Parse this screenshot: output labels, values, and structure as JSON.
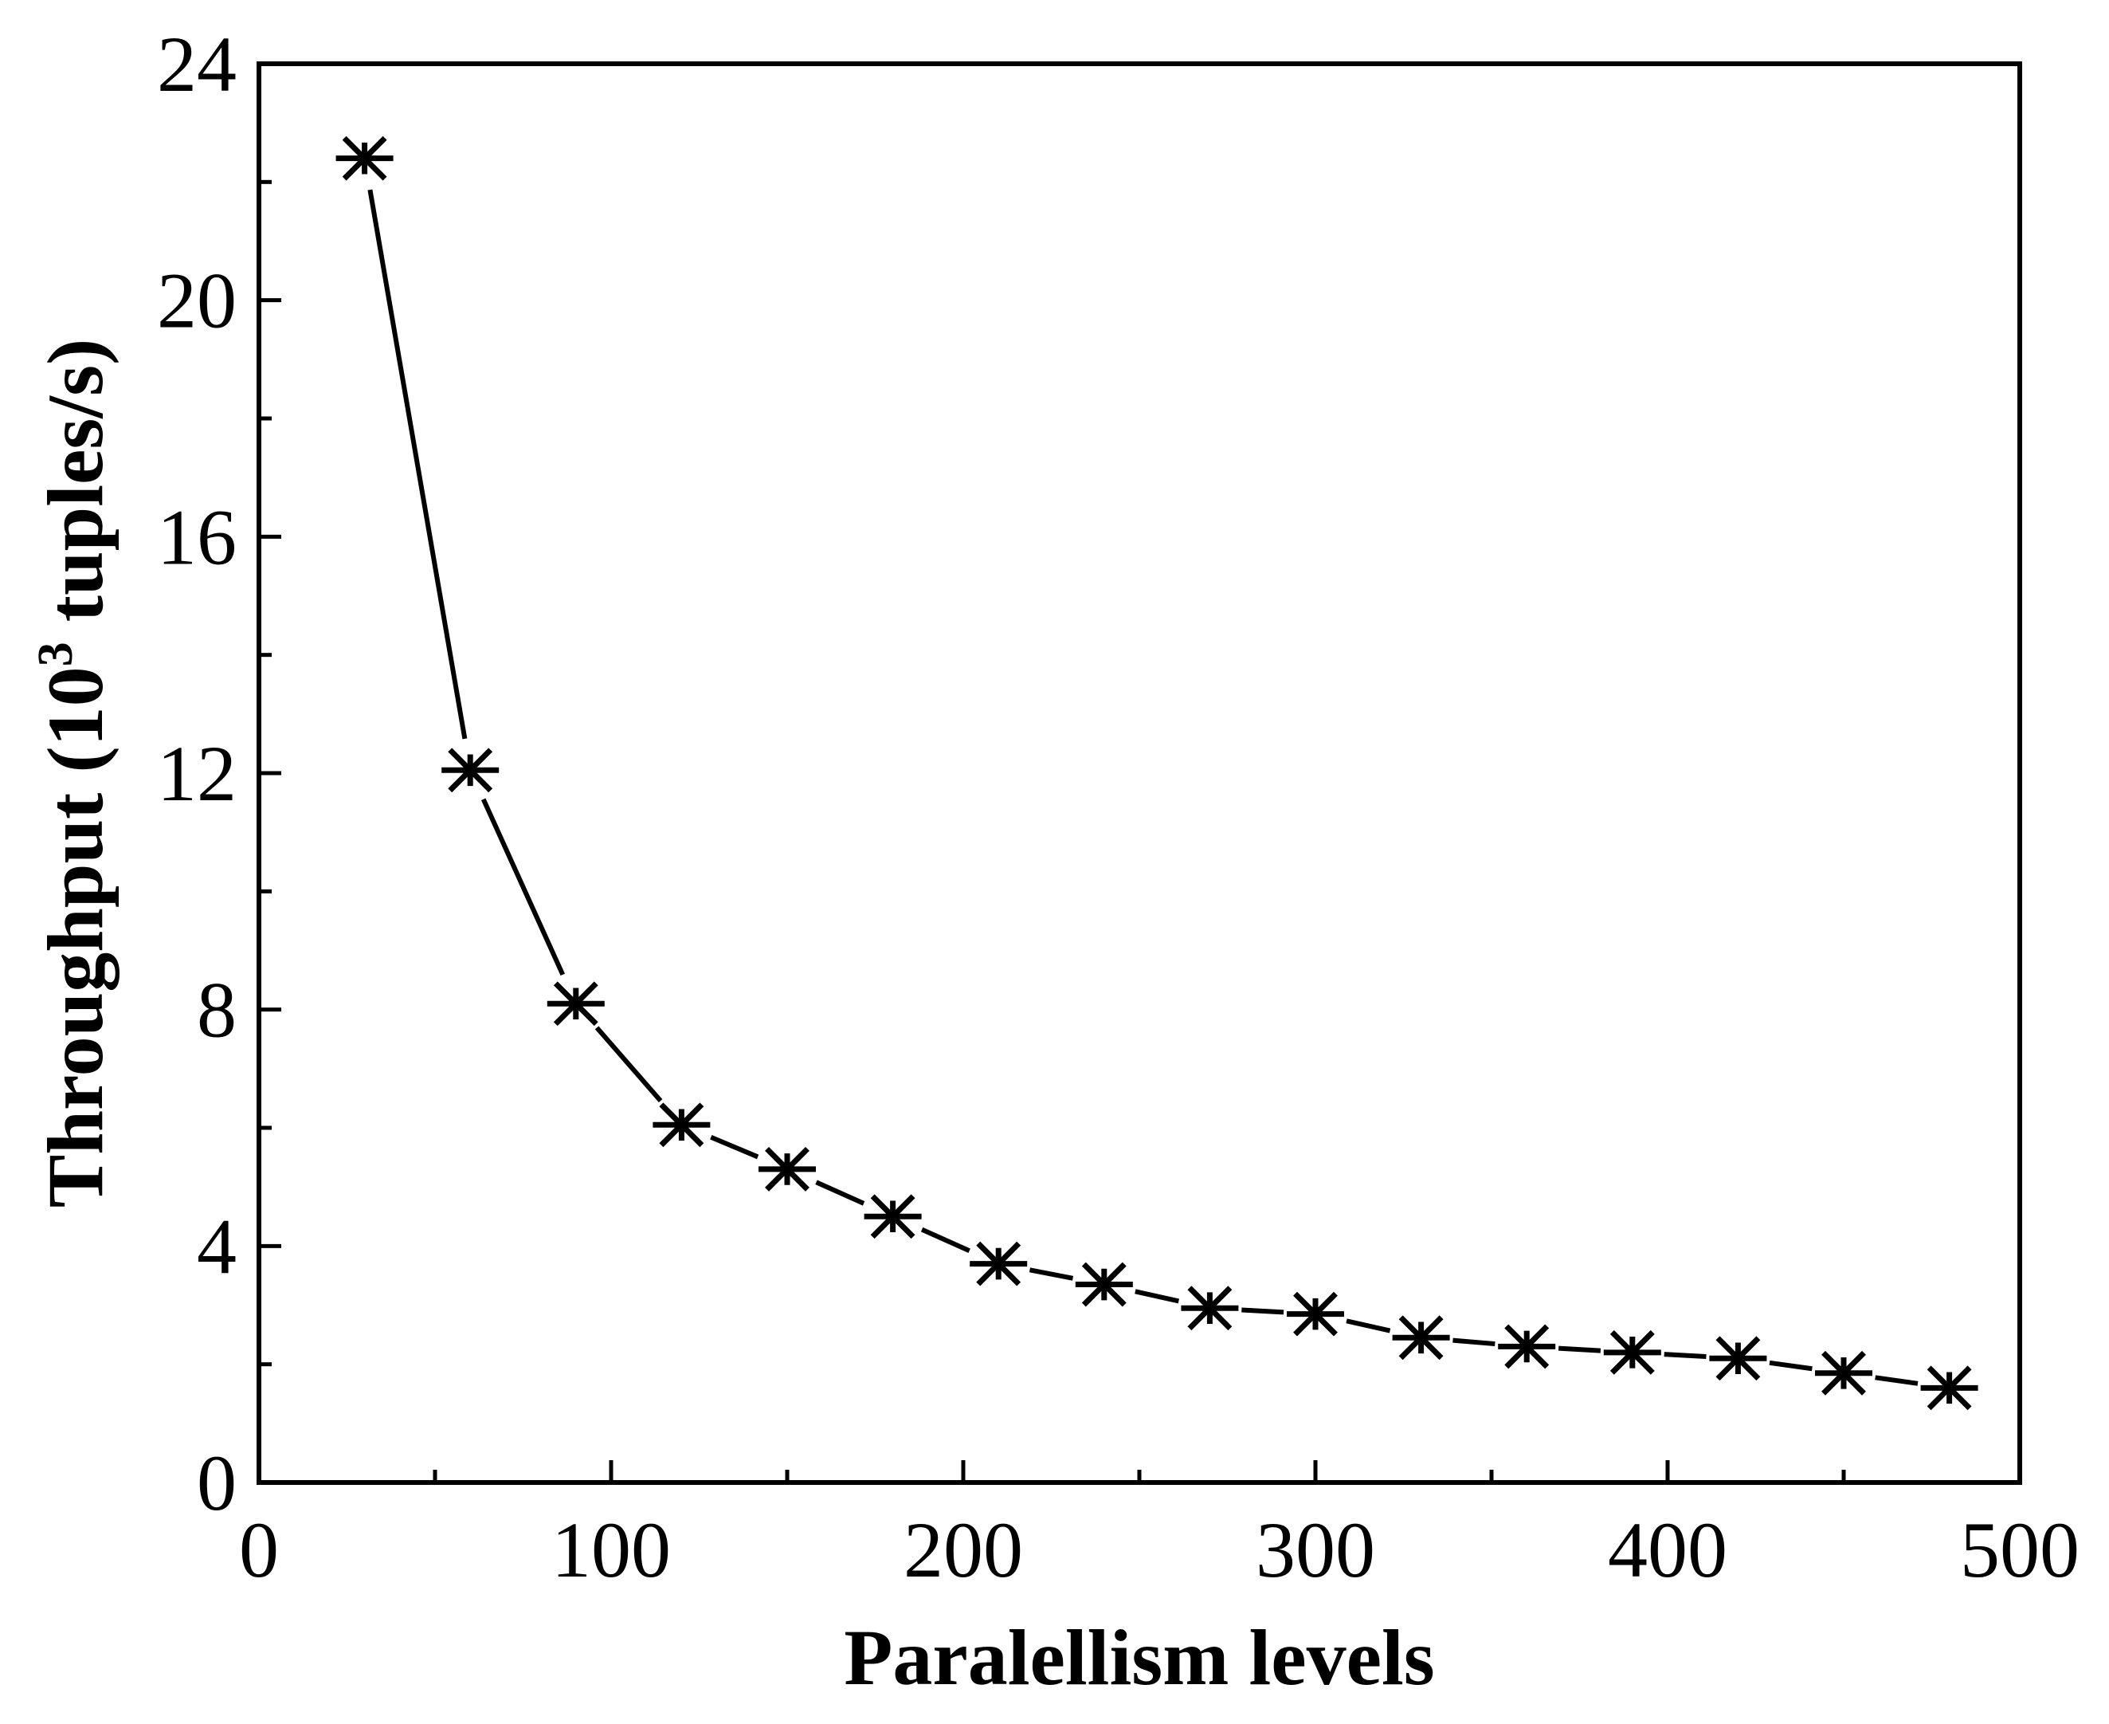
{
  "chart_data": {
    "type": "line",
    "xlabel": "Paralellism levels",
    "ylabel": {
      "prefix": "Throughput (10",
      "superscript": "3",
      "suffix": " tuples/s)"
    },
    "xlim": [
      0,
      500
    ],
    "ylim": [
      0,
      24
    ],
    "xticks": [
      0,
      100,
      200,
      300,
      400,
      500
    ],
    "yticks": [
      0,
      4,
      8,
      12,
      16,
      20,
      24
    ],
    "xticks_minor": [
      50,
      150,
      250,
      350,
      450
    ],
    "yticks_minor": [
      2,
      6,
      10,
      14,
      18,
      22
    ],
    "grid": false,
    "legend": "none",
    "series": [
      {
        "marker": "asterisk",
        "color": "#000000",
        "x": [
          30,
          60,
          90,
          120,
          150,
          180,
          210,
          240,
          270,
          300,
          330,
          360,
          390,
          420,
          450,
          480
        ],
        "y": [
          22.4,
          12.05,
          8.1,
          6.05,
          5.3,
          4.5,
          3.7,
          3.35,
          2.95,
          2.85,
          2.45,
          2.3,
          2.2,
          2.1,
          1.85,
          1.6
        ]
      }
    ]
  }
}
